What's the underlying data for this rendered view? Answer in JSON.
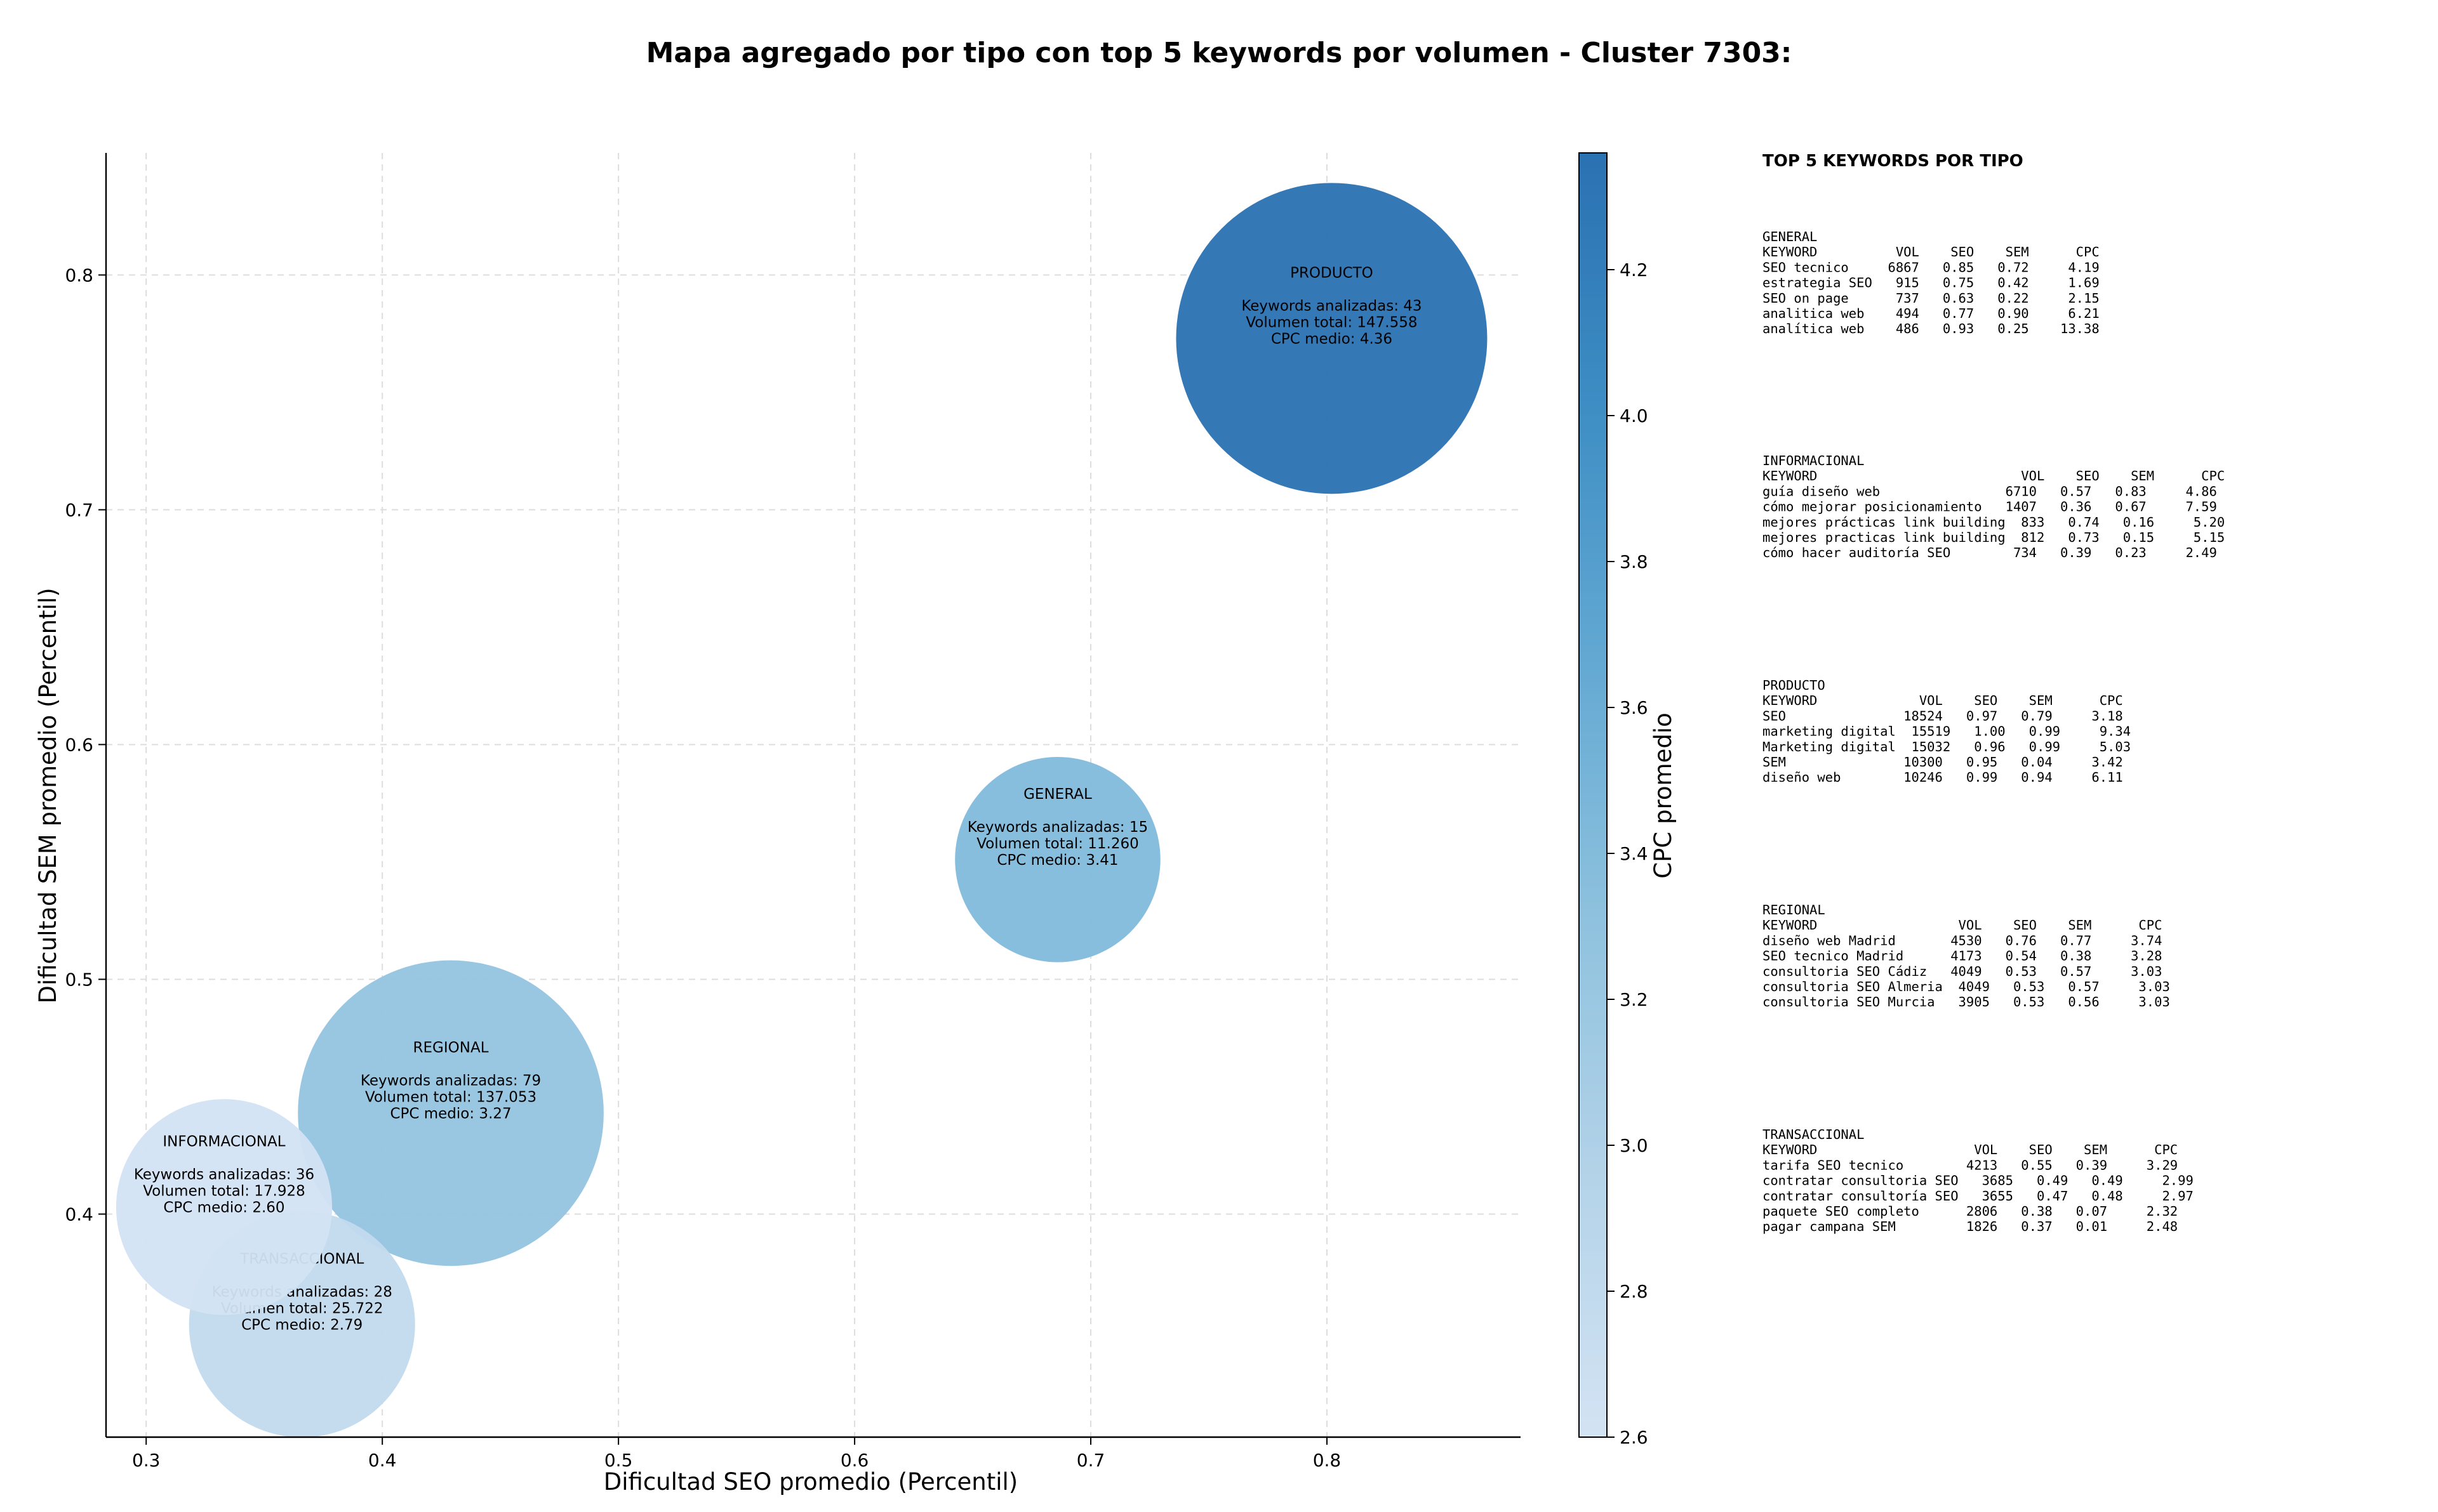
{
  "chart_data": {
    "type": "scatter",
    "title": "Mapa agregado por tipo con top 5 keywords por volumen - Cluster 7303:",
    "xlabel": "Dificultad SEO promedio (Percentil)",
    "ylabel": "Dificultad SEM promedio (Percentil)",
    "xlim": [
      0.283,
      0.882
    ],
    "ylim": [
      0.305,
      0.852
    ],
    "xticks": [
      "0.3",
      "0.4",
      "0.5",
      "0.6",
      "0.7",
      "0.8"
    ],
    "yticks": [
      "0.4",
      "0.5",
      "0.6",
      "0.7",
      "0.8"
    ],
    "grid": true,
    "bubble_size": "Volumen total",
    "colorbar": {
      "label": "CPC promedio",
      "min": 2.6,
      "max": 4.36,
      "ticks": [
        "2.6",
        "2.8",
        "3.0",
        "3.2",
        "3.4",
        "3.6",
        "3.8",
        "4.0",
        "4.2"
      ],
      "colors": [
        "#d3e3f3",
        "#b4d3e9",
        "#8fc2de",
        "#64a9d3",
        "#3e8ec4",
        "#2a71b2"
      ]
    },
    "points": [
      {
        "name": "PRODUCTO",
        "x": 0.802,
        "y": 0.773,
        "keywords": 43,
        "volume": 147558,
        "cpc": 4.36,
        "line1": "Keywords analizadas: 43",
        "line2": "Volumen total: 147.558",
        "line3": "CPC medio: 4.36"
      },
      {
        "name": "GENERAL",
        "x": 0.686,
        "y": 0.551,
        "keywords": 15,
        "volume": 11260,
        "cpc": 3.41,
        "line1": "Keywords analizadas: 15",
        "line2": "Volumen total: 11.260",
        "line3": "CPC medio: 3.41"
      },
      {
        "name": "REGIONAL",
        "x": 0.429,
        "y": 0.443,
        "keywords": 79,
        "volume": 137053,
        "cpc": 3.27,
        "line1": "Keywords analizadas: 79",
        "line2": "Volumen total: 137.053",
        "line3": "CPC medio: 3.27"
      },
      {
        "name": "INFORMACIONAL",
        "x": 0.333,
        "y": 0.403,
        "keywords": 36,
        "volume": 17928,
        "cpc": 2.6,
        "line1": "Keywords analizadas: 36",
        "line2": "Volumen total: 17.928",
        "line3": "CPC medio: 2.60"
      },
      {
        "name": "TRANSACCIONAL",
        "x": 0.366,
        "y": 0.353,
        "keywords": 28,
        "volume": 25722,
        "cpc": 2.79,
        "line1": "Keywords analizadas: 28",
        "line2": "Volumen total: 25.722",
        "line3": "CPC medio: 2.79"
      }
    ],
    "table": {
      "title": "TOP 5 KEYWORDS POR TIPO",
      "groups": [
        {
          "name": "GENERAL",
          "header": "KEYWORD          VOL    SEO    SEM      CPC",
          "rows": [
            "SEO tecnico     6867   0.85   0.72     4.19",
            "estrategia SEO   915   0.75   0.42     1.69",
            "SEO on page      737   0.63   0.22     2.15",
            "analitica web    494   0.77   0.90     6.21",
            "analítica web    486   0.93   0.25    13.38"
          ]
        },
        {
          "name": "INFORMACIONAL",
          "header": "KEYWORD                          VOL    SEO    SEM      CPC",
          "rows": [
            "guía diseño web                6710   0.57   0.83     4.86",
            "cómo mejorar posicionamiento   1407   0.36   0.67     7.59",
            "mejores prácticas link building  833   0.74   0.16     5.20",
            "mejores practicas link building  812   0.73   0.15     5.15",
            "cómo hacer auditoría SEO        734   0.39   0.23     2.49"
          ]
        },
        {
          "name": "PRODUCTO",
          "header": "KEYWORD             VOL    SEO    SEM      CPC",
          "rows": [
            "SEO               18524   0.97   0.79     3.18",
            "marketing digital  15519   1.00   0.99     9.34",
            "Marketing digital  15032   0.96   0.99     5.03",
            "SEM               10300   0.95   0.04     3.42",
            "diseño web        10246   0.99   0.94     6.11"
          ]
        },
        {
          "name": "REGIONAL",
          "header": "KEYWORD                  VOL    SEO    SEM      CPC",
          "rows": [
            "diseño web Madrid       4530   0.76   0.77     3.74",
            "SEO tecnico Madrid      4173   0.54   0.38     3.28",
            "consultoria SEO Cádiz   4049   0.53   0.57     3.03",
            "consultoria SEO Almeria  4049   0.53   0.57     3.03",
            "consultoria SEO Murcia   3905   0.53   0.56     3.03"
          ]
        },
        {
          "name": "TRANSACCIONAL",
          "header": "KEYWORD                    VOL    SEO    SEM      CPC",
          "rows": [
            "tarifa SEO tecnico        4213   0.55   0.39     3.29",
            "contratar consultoria SEO   3685   0.49   0.49     2.99",
            "contratar consultoría SEO   3655   0.47   0.48     2.97",
            "paquete SEO completo      2806   0.38   0.07     2.32",
            "pagar campana SEM         1826   0.37   0.01     2.48"
          ]
        }
      ]
    }
  }
}
